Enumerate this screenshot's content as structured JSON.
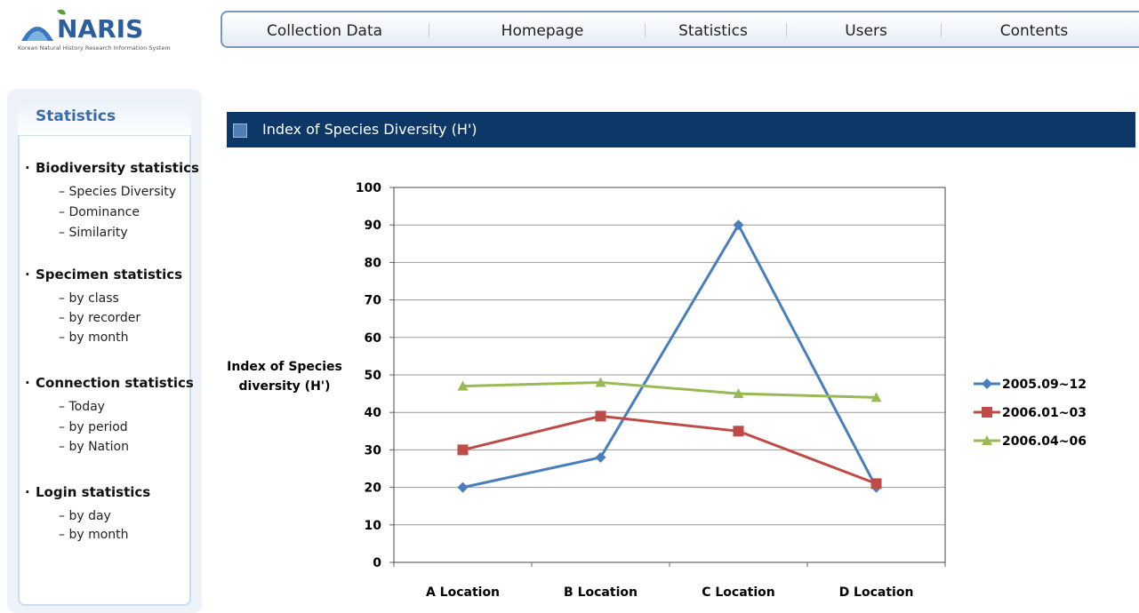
{
  "logo": {
    "title": "NARIS",
    "subtitle": "Korean Natural History Research Information System"
  },
  "nav": [
    "Collection Data",
    "Homepage",
    "Statistics",
    "Users",
    "Contents"
  ],
  "sidebar": {
    "title": "Statistics",
    "groups": [
      {
        "title": "Biodiversity statistics",
        "items": [
          "– Species Diversity",
          "– Dominance",
          "– Similarity"
        ]
      },
      {
        "title": "Specimen statistics",
        "items": [
          "– by class",
          "– by recorder",
          "– by month"
        ]
      },
      {
        "title": "Connection statistics",
        "items": [
          "– Today",
          "– by period",
          "– by Nation"
        ]
      },
      {
        "title": "Login statistics",
        "items": [
          "– by day",
          "– by month"
        ]
      }
    ]
  },
  "section_title": "Index of Species Diversity (H')",
  "chart_data": {
    "type": "line",
    "y_label": "Index of Species diversity (H')",
    "categories": [
      "A Location",
      "B Location",
      "C Location",
      "D Location"
    ],
    "series": [
      {
        "name": "2005.09~12",
        "color": "#4a7ebb",
        "marker": "diamond",
        "values": [
          20,
          28,
          90,
          20
        ]
      },
      {
        "name": "2006.01~03",
        "color": "#be4b48",
        "marker": "square",
        "values": [
          30,
          39,
          35,
          21
        ]
      },
      {
        "name": "2006.04~06",
        "color": "#98b954",
        "marker": "triangle",
        "values": [
          47,
          48,
          45,
          44
        ]
      }
    ],
    "ylim": [
      0,
      100
    ],
    "yticks": [
      0,
      10,
      20,
      30,
      40,
      50,
      60,
      70,
      80,
      90,
      100
    ],
    "grid": true,
    "legend": "right"
  }
}
